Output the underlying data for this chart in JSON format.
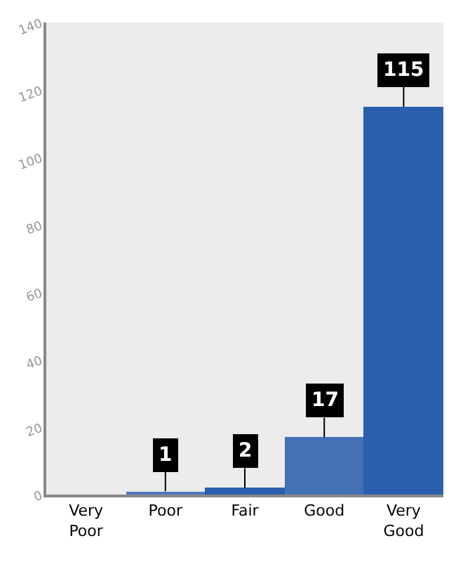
{
  "chart_data": {
    "type": "bar",
    "categories": [
      "Very\nPoor",
      "Poor",
      "Fair",
      "Good",
      "Very\nGood"
    ],
    "values": [
      0,
      1,
      2,
      17,
      115
    ],
    "colors": [
      "#2a5fad",
      "#4a78be",
      "#2a5fad",
      "#4470b4",
      "#2a5fad"
    ],
    "value_labels": [
      null,
      "1",
      "2",
      "17",
      "115"
    ],
    "ylim": [
      0,
      140
    ],
    "yticks": [
      0,
      20,
      40,
      60,
      80,
      100,
      120,
      140
    ],
    "grid": false
  }
}
